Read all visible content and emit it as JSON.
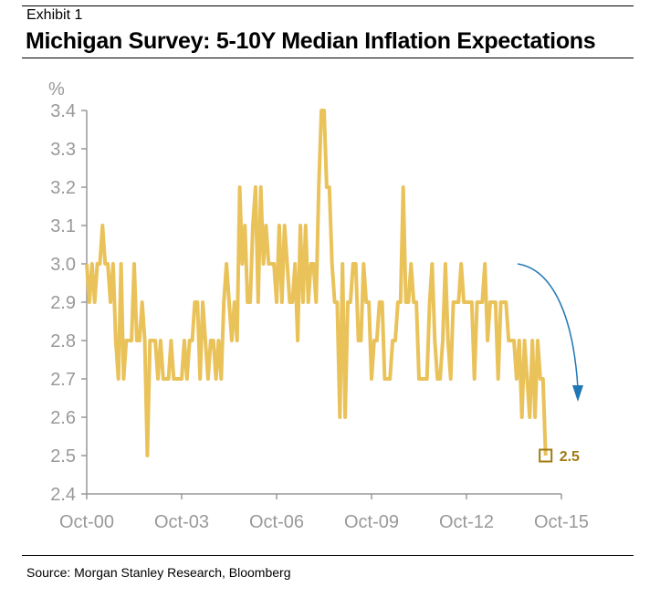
{
  "header": {
    "exhibit": "Exhibit 1",
    "title": "Michigan Survey: 5-10Y Median Inflation Expectations"
  },
  "footer": {
    "source": "Source: Morgan Stanley Research, Bloomberg"
  },
  "colors": {
    "line": "#EAC25A",
    "axis": "#999999",
    "annotation": "#A07A10",
    "arrow": "#1F77B4"
  },
  "chart_data": {
    "type": "line",
    "title": "Michigan Survey: 5-10Y Median Inflation Expectations",
    "xlabel": "",
    "ylabel": "%",
    "ylim": [
      2.4,
      3.4
    ],
    "yticks": [
      "2.4",
      "2.5",
      "2.6",
      "2.7",
      "2.8",
      "2.9",
      "3.0",
      "3.1",
      "3.2",
      "3.3",
      "3.4"
    ],
    "xticks": [
      "Oct-00",
      "Oct-03",
      "Oct-06",
      "Oct-09",
      "Oct-12",
      "Oct-15"
    ],
    "x_start": "Oct-2000",
    "x_frequency": "monthly",
    "grid": false,
    "legend": "none",
    "series": [
      {
        "name": "5-10Y Median Inflation Expectations",
        "values": [
          3.0,
          2.9,
          3.0,
          2.9,
          3.0,
          3.0,
          3.1,
          3.0,
          3.0,
          2.9,
          3.0,
          2.8,
          2.7,
          3.0,
          2.7,
          2.8,
          2.8,
          2.8,
          3.0,
          2.8,
          2.8,
          2.9,
          2.8,
          2.5,
          2.8,
          2.8,
          2.8,
          2.7,
          2.8,
          2.7,
          2.7,
          2.7,
          2.8,
          2.7,
          2.7,
          2.7,
          2.7,
          2.8,
          2.7,
          2.8,
          2.8,
          2.9,
          2.9,
          2.7,
          2.9,
          2.8,
          2.7,
          2.8,
          2.8,
          2.7,
          2.8,
          2.7,
          2.9,
          3.0,
          2.9,
          2.8,
          2.9,
          2.8,
          3.2,
          3.0,
          3.1,
          2.9,
          2.9,
          3.1,
          3.2,
          2.9,
          3.2,
          3.0,
          3.1,
          3.0,
          3.0,
          3.0,
          2.9,
          3.1,
          2.9,
          3.1,
          3.0,
          2.9,
          2.9,
          3.0,
          2.8,
          3.1,
          2.9,
          3.1,
          2.9,
          3.0,
          3.0,
          2.9,
          3.2,
          3.4,
          3.4,
          3.2,
          3.2,
          3.0,
          2.9,
          2.9,
          2.6,
          3.0,
          2.6,
          2.9,
          2.9,
          3.0,
          3.0,
          2.8,
          2.8,
          3.0,
          2.9,
          2.9,
          2.7,
          2.8,
          2.8,
          2.9,
          2.9,
          2.7,
          2.7,
          2.7,
          2.8,
          2.8,
          2.9,
          2.9,
          3.2,
          2.9,
          2.9,
          3.0,
          2.9,
          2.9,
          2.7,
          2.7,
          2.7,
          2.7,
          2.9,
          3.0,
          2.8,
          2.7,
          2.7,
          2.8,
          3.0,
          2.8,
          2.7,
          2.9,
          2.9,
          2.9,
          3.0,
          2.9,
          2.9,
          2.9,
          2.9,
          2.7,
          2.9,
          2.9,
          2.9,
          3.0,
          2.8,
          2.9,
          2.9,
          2.9,
          2.7,
          2.9,
          2.9,
          2.9,
          2.8,
          2.8,
          2.8,
          2.7,
          2.8,
          2.6,
          2.8,
          2.7,
          2.6,
          2.8,
          2.6,
          2.8,
          2.7,
          2.7,
          2.5
        ]
      }
    ],
    "annotations": [
      {
        "type": "marker",
        "label": "2.5",
        "value": 2.5,
        "position": "last-point"
      },
      {
        "type": "arrow",
        "direction": "down",
        "description": "curved arrow indicating decline"
      }
    ]
  }
}
